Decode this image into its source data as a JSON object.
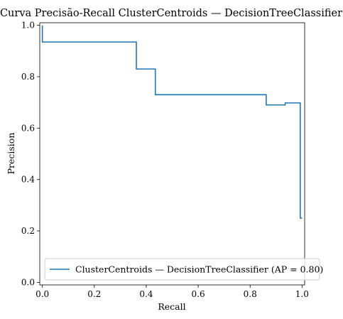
{
  "chart_data": {
    "type": "line",
    "title": "Curva Precisão-Recall ClusterCentroids — DecisionTreeClassifier",
    "xlabel": "Recall",
    "ylabel": "Precision",
    "xlim": [
      -0.01,
      1.01
    ],
    "ylim": [
      -0.01,
      1.01
    ],
    "xticks": [
      "0.0",
      "0.2",
      "0.4",
      "0.6",
      "0.8",
      "1.0"
    ],
    "yticks": [
      "0.0",
      "0.2",
      "0.4",
      "0.6",
      "0.8",
      "1.0"
    ],
    "grid": false,
    "legend_position": "bottom",
    "series": [
      {
        "name": "ClusterCentroids — DecisionTreeClassifier (AP = 0.80)",
        "color": "#1f77b4",
        "drawstyle": "steps-post",
        "recall": [
          1.0,
          1.0,
          0.993,
          0.993,
          0.935,
          0.935,
          0.862,
          0.862,
          0.435,
          0.435,
          0.362,
          0.362,
          0.0,
          0.0
        ],
        "precision": [
          0.25,
          0.25,
          0.25,
          0.698,
          0.698,
          0.69,
          0.69,
          0.73,
          0.73,
          0.83,
          0.83,
          0.935,
          0.935,
          1.0
        ]
      }
    ]
  }
}
